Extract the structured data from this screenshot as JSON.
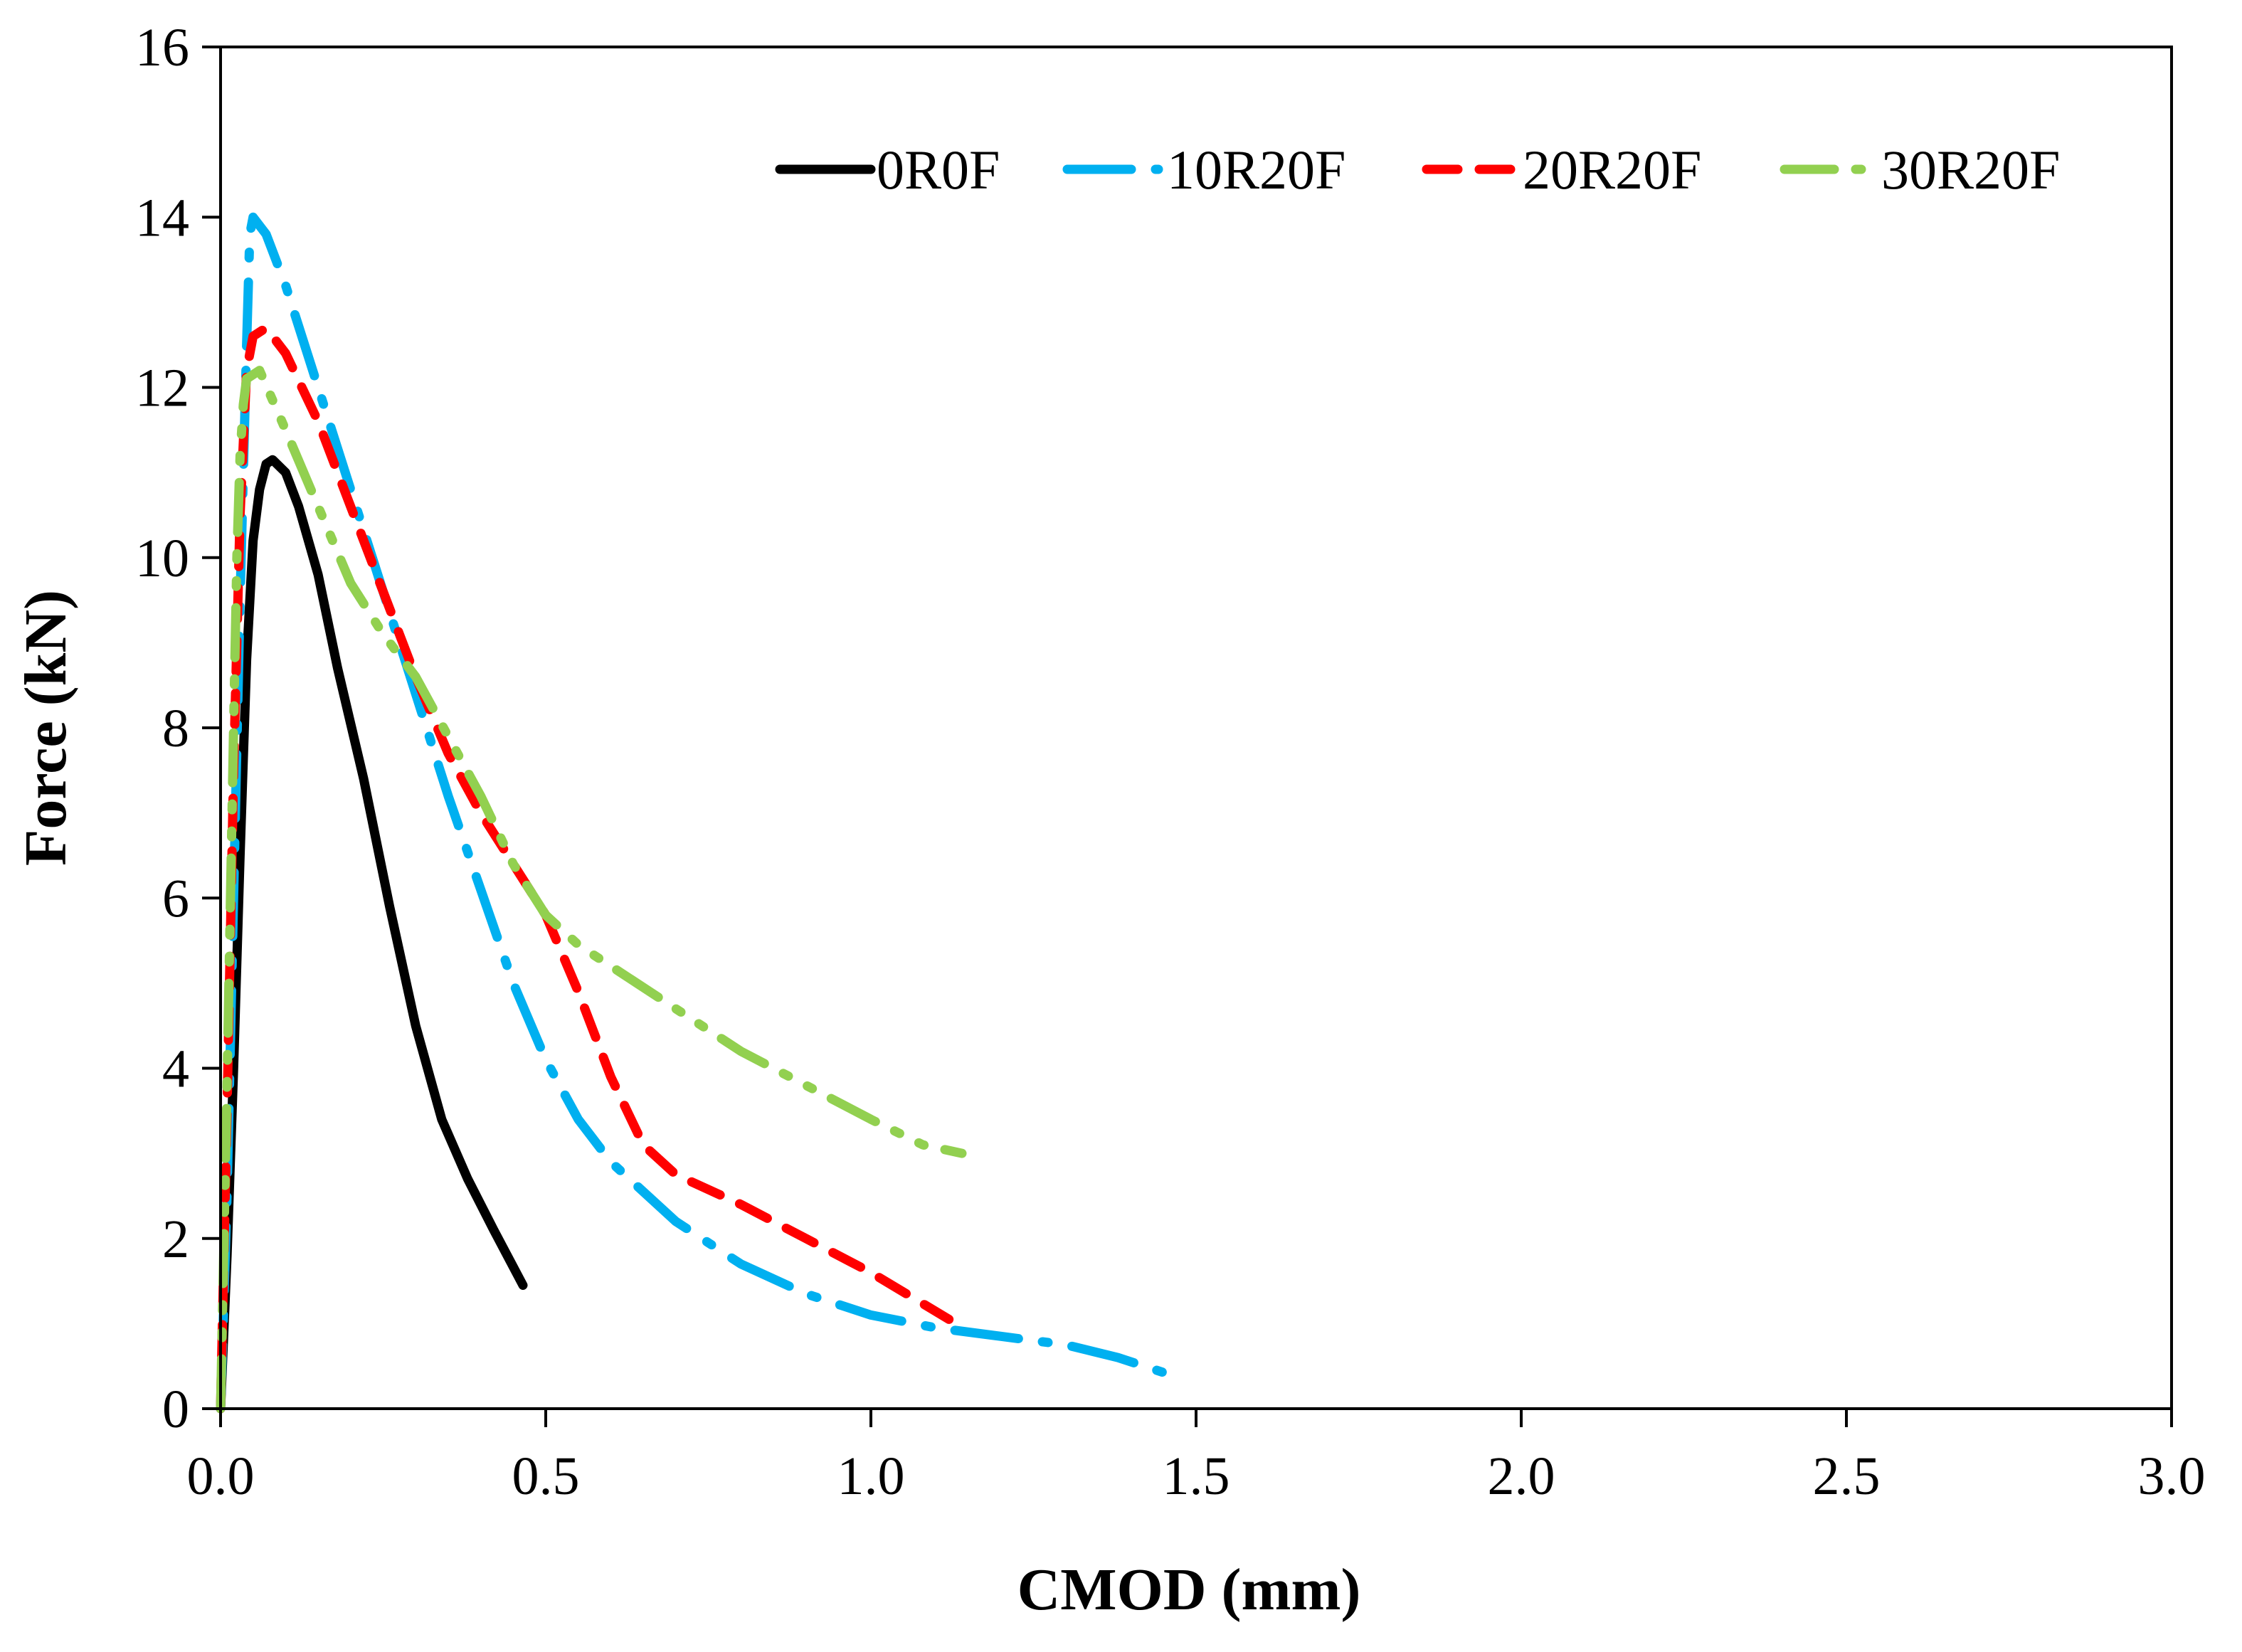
{
  "chart_data": {
    "type": "line",
    "title": "",
    "xlabel": "CMOD (mm)",
    "ylabel": "Force (kN)",
    "xlim": [
      0,
      3.0
    ],
    "ylim": [
      0,
      16
    ],
    "xticks": [
      0.0,
      0.5,
      1.0,
      1.5,
      2.0,
      2.5,
      3.0
    ],
    "xtick_labels": [
      "0.0",
      "0.5",
      "1.0",
      "1.5",
      "2.0",
      "2.5",
      "3.0"
    ],
    "yticks": [
      0,
      2,
      4,
      6,
      8,
      10,
      12,
      14,
      16
    ],
    "ytick_labels": [
      "0",
      "2",
      "4",
      "6",
      "8",
      "10",
      "12",
      "14",
      "16"
    ],
    "grid": false,
    "legend_position": "top-right",
    "series": [
      {
        "name": "0R0F",
        "color": "#000000",
        "style": "solid",
        "x": [
          0.0,
          0.01,
          0.02,
          0.03,
          0.04,
          0.05,
          0.06,
          0.07,
          0.08,
          0.1,
          0.12,
          0.15,
          0.18,
          0.22,
          0.26,
          0.3,
          0.34,
          0.38,
          0.42,
          0.465
        ],
        "y": [
          0.0,
          1.8,
          4.0,
          6.5,
          8.8,
          10.2,
          10.8,
          11.1,
          11.15,
          11.0,
          10.6,
          9.8,
          8.7,
          7.4,
          5.9,
          4.5,
          3.4,
          2.7,
          2.1,
          1.45
        ]
      },
      {
        "name": "10R20F",
        "color": "#00B0F0",
        "style": "long-dash-dot",
        "x": [
          0.0,
          0.01,
          0.02,
          0.03,
          0.04,
          0.045,
          0.05,
          0.07,
          0.1,
          0.15,
          0.2,
          0.25,
          0.3,
          0.35,
          0.4,
          0.45,
          0.5,
          0.55,
          0.6,
          0.7,
          0.8,
          0.9,
          1.0,
          1.1,
          1.2,
          1.3,
          1.38,
          1.46
        ],
        "y": [
          0.0,
          2.5,
          6.0,
          9.5,
          12.5,
          13.8,
          14.0,
          13.8,
          13.2,
          12.0,
          10.8,
          9.6,
          8.4,
          7.2,
          6.1,
          5.0,
          4.1,
          3.4,
          2.9,
          2.2,
          1.7,
          1.35,
          1.1,
          0.95,
          0.85,
          0.75,
          0.6,
          0.4
        ]
      },
      {
        "name": "20R20F",
        "color": "#FF0000",
        "style": "dashed",
        "x": [
          0.0,
          0.01,
          0.02,
          0.03,
          0.04,
          0.05,
          0.07,
          0.1,
          0.15,
          0.2,
          0.25,
          0.3,
          0.35,
          0.4,
          0.45,
          0.5,
          0.55,
          0.6,
          0.65,
          0.7,
          0.8,
          0.9,
          1.0,
          1.12
        ],
        "y": [
          0.0,
          3.5,
          7.5,
          10.5,
          12.2,
          12.6,
          12.7,
          12.4,
          11.6,
          10.6,
          9.6,
          8.6,
          7.7,
          7.0,
          6.4,
          5.8,
          4.9,
          3.9,
          3.1,
          2.75,
          2.4,
          2.0,
          1.6,
          1.05
        ]
      },
      {
        "name": "30R20F",
        "color": "#92D050",
        "style": "long-dash-dot-dot",
        "x": [
          0.0,
          0.01,
          0.02,
          0.025,
          0.03,
          0.035,
          0.04,
          0.06,
          0.1,
          0.15,
          0.2,
          0.25,
          0.3,
          0.35,
          0.4,
          0.45,
          0.5,
          0.55,
          0.6,
          0.7,
          0.8,
          0.9,
          1.0,
          1.08,
          1.14
        ],
        "y": [
          0.0,
          3.8,
          8.0,
          10.0,
          11.2,
          11.8,
          12.1,
          12.2,
          11.5,
          10.6,
          9.7,
          9.1,
          8.6,
          7.9,
          7.2,
          6.4,
          5.8,
          5.45,
          5.2,
          4.7,
          4.2,
          3.8,
          3.4,
          3.1,
          3.0
        ]
      }
    ]
  }
}
